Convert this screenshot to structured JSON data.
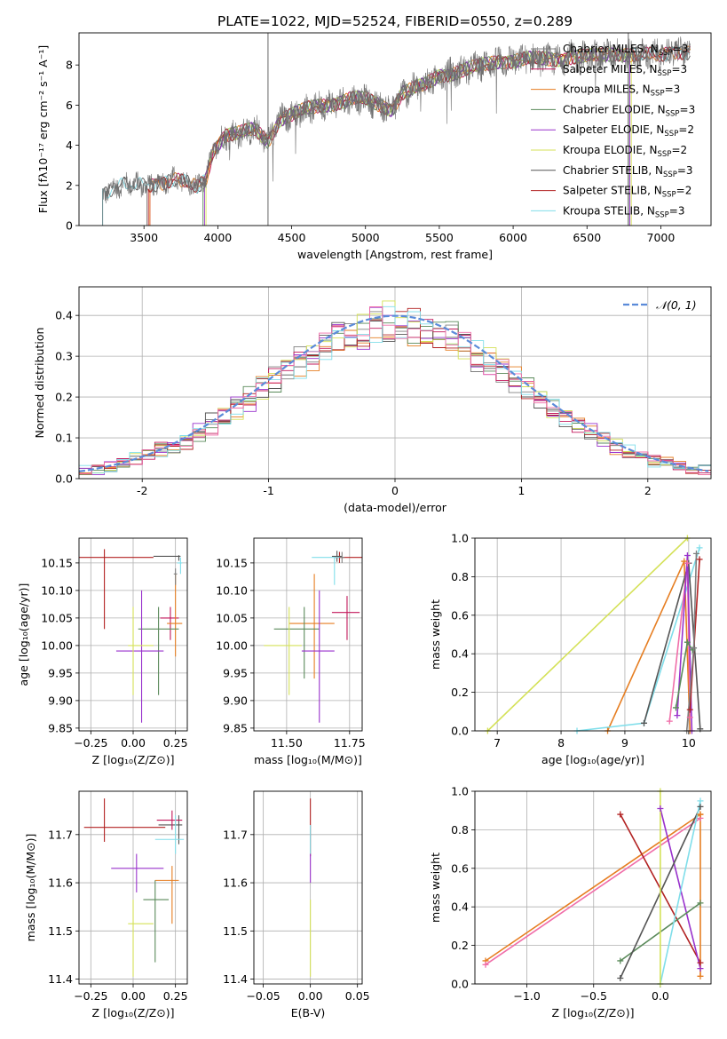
{
  "title": "PLATE=1022, MJD=52524, FIBERID=0550, z=0.289",
  "colors": {
    "Chabrier MILES": "#808080",
    "Salpeter MILES": "#c2185b",
    "Kroupa MILES": "#e67e22",
    "Chabrier ELODIE": "#5a8a5a",
    "Salpeter ELODIE": "#9932cc",
    "Kroupa ELODIE": "#d4e157",
    "Chabrier STELIB": "#555555",
    "Salpeter STELIB": "#b22222",
    "Kroupa STELIB": "#80deea",
    "pink": "#f06ea9",
    "gauss": "#5b8bd9"
  },
  "chart_data": [
    {
      "id": "spectrum",
      "type": "line",
      "xlabel": "wavelength [Angstrom, rest frame]",
      "ylabel": "Flux [fλ10⁻¹⁷ erg cm⁻² s⁻¹ A⁻¹]",
      "xlim": [
        3060,
        7340
      ],
      "ylim": [
        0,
        9.6
      ],
      "xticks": [
        3500,
        4000,
        4500,
        5000,
        5500,
        6000,
        6500,
        7000
      ],
      "yticks": [
        0,
        2,
        4,
        6,
        8
      ],
      "legend_position": "right",
      "legend": [
        {
          "name": "Chabrier MILES",
          "base": "Chabrier MILES, N",
          "sub": "SSP",
          "tail": "=3"
        },
        {
          "name": "Salpeter MILES",
          "base": "Salpeter MILES, N",
          "sub": "SSP",
          "tail": "=3"
        },
        {
          "name": "Kroupa MILES",
          "base": "Kroupa MILES, N",
          "sub": "SSP",
          "tail": "=3"
        },
        {
          "name": "Chabrier ELODIE",
          "base": "Chabrier ELODIE, N",
          "sub": "SSP",
          "tail": "=3"
        },
        {
          "name": "Salpeter ELODIE",
          "base": "Salpeter ELODIE, N",
          "sub": "SSP",
          "tail": "=2"
        },
        {
          "name": "Kroupa ELODIE",
          "base": "Kroupa ELODIE, N",
          "sub": "SSP",
          "tail": "=2"
        },
        {
          "name": "Chabrier STELIB",
          "base": "Chabrier STELIB, N",
          "sub": "SSP",
          "tail": "=3"
        },
        {
          "name": "Salpeter STELIB",
          "base": "Salpeter STELIB, N",
          "sub": "SSP",
          "tail": "=2"
        },
        {
          "name": "Kroupa STELIB",
          "base": "Kroupa STELIB, N",
          "sub": "SSP",
          "tail": "=3"
        }
      ],
      "continuum": [
        [
          3220,
          1.6
        ],
        [
          3300,
          1.9
        ],
        [
          3400,
          2.1
        ],
        [
          3500,
          2.0
        ],
        [
          3600,
          2.1
        ],
        [
          3700,
          2.3
        ],
        [
          3800,
          2.1
        ],
        [
          3860,
          1.9
        ],
        [
          3920,
          2.3
        ],
        [
          3970,
          3.8
        ],
        [
          4050,
          4.5
        ],
        [
          4150,
          4.6
        ],
        [
          4250,
          4.8
        ],
        [
          4340,
          4.2
        ],
        [
          4420,
          5.3
        ],
        [
          4500,
          5.5
        ],
        [
          4600,
          5.8
        ],
        [
          4700,
          6.0
        ],
        [
          4800,
          6.1
        ],
        [
          4900,
          6.3
        ],
        [
          5000,
          6.3
        ],
        [
          5100,
          6.0
        ],
        [
          5180,
          5.8
        ],
        [
          5250,
          6.6
        ],
        [
          5400,
          7.0
        ],
        [
          5500,
          7.5
        ],
        [
          5600,
          7.6
        ],
        [
          5700,
          7.8
        ],
        [
          5800,
          8.0
        ],
        [
          5900,
          8.2
        ],
        [
          6000,
          8.2
        ],
        [
          6100,
          8.3
        ],
        [
          6200,
          8.3
        ],
        [
          6300,
          8.3
        ],
        [
          6400,
          8.4
        ],
        [
          6500,
          8.4
        ],
        [
          6600,
          8.5
        ],
        [
          6700,
          8.6
        ],
        [
          6800,
          8.5
        ],
        [
          6900,
          8.5
        ],
        [
          7000,
          8.5
        ],
        [
          7100,
          8.7
        ],
        [
          7200,
          8.6
        ]
      ],
      "model_starts": {
        "Chabrier MILES": 3520,
        "Salpeter MILES": 3540,
        "Kroupa MILES": 3540,
        "Chabrier ELODIE": 3900,
        "Salpeter ELODIE": 3910,
        "Kroupa ELODIE": 3920,
        "Chabrier STELIB": 3220,
        "Salpeter STELIB": 3530,
        "Kroupa STELIB": 3220
      },
      "model_ends": {
        "Chabrier ELODIE": 6780,
        "Salpeter ELODIE": 6790,
        "Kroupa ELODIE": 6800
      }
    },
    {
      "id": "residuals",
      "type": "histogram",
      "xlabel": "(data-model)/error",
      "ylabel": "Normed distribution",
      "xlim": [
        -2.5,
        2.5
      ],
      "ylim": [
        0,
        0.47
      ],
      "xticks": [
        -2,
        -1,
        0,
        1,
        2
      ],
      "yticks": [
        0.0,
        0.1,
        0.2,
        0.3,
        0.4
      ],
      "legend": "𝒩(0, 1)",
      "gaussian": {
        "mean": 0,
        "sigma": 1
      }
    },
    {
      "id": "age-vs-Z",
      "type": "errorbar",
      "xlabel": "Z [log₁₀(Z/Z⊙)]",
      "ylabel": "age  [log₁₀(age/yr)]",
      "xlim": [
        -0.32,
        0.32
      ],
      "ylim": [
        9.845,
        10.195
      ],
      "xticks": [
        -0.25,
        0.0,
        0.25
      ],
      "yticks": [
        9.85,
        9.9,
        9.95,
        10.0,
        10.05,
        10.1,
        10.15
      ],
      "points": [
        {
          "series": "Salpeter STELIB",
          "x": -0.17,
          "xe": [
            0.17,
            0.29
          ],
          "y": 10.16,
          "ye": [
            0.13,
            0.015
          ]
        },
        {
          "series": "Chabrier STELIB",
          "x": 0.27,
          "xe": [
            0.15,
            0.01
          ],
          "y": 10.162,
          "ye": [
            0.008,
            0.002
          ]
        },
        {
          "series": "Kroupa STELIB",
          "x": 0.28,
          "xe": [
            0.02,
            0.01
          ],
          "y": 10.15,
          "ye": [
            0.02,
            0.01
          ]
        },
        {
          "series": "Salpeter MILES",
          "x": 0.22,
          "xe": [
            0.06,
            0.05
          ],
          "y": 10.05,
          "ye": [
            0.04,
            0.02
          ]
        },
        {
          "series": "Kroupa MILES",
          "x": 0.25,
          "xe": [
            0.05,
            0.04
          ],
          "y": 10.04,
          "ye": [
            0.06,
            0.09
          ]
        },
        {
          "series": "Chabrier ELODIE",
          "x": 0.15,
          "xe": [
            0.12,
            0.12
          ],
          "y": 10.03,
          "ye": [
            0.12,
            0.04
          ]
        },
        {
          "series": "Salpeter ELODIE",
          "x": 0.05,
          "xe": [
            0.15,
            0.13
          ],
          "y": 9.99,
          "ye": [
            0.13,
            0.11
          ]
        },
        {
          "series": "Kroupa ELODIE",
          "x": 0.0,
          "xe": [
            0.03,
            0.12
          ],
          "y": 10.0,
          "ye": [
            0.09,
            0.07
          ]
        },
        {
          "series": "Chabrier MILES",
          "x": 0.25,
          "xe": [
            0.01,
            0.01
          ],
          "y": 10.13,
          "ye": [
            0.02,
            0.01
          ]
        }
      ]
    },
    {
      "id": "age-vs-mass",
      "type": "errorbar",
      "xlabel": "mass [log₁₀(M/M⊙)]",
      "ylabel": "",
      "xlim": [
        11.37,
        11.8
      ],
      "ylim": [
        9.845,
        10.195
      ],
      "xticks": [
        11.5,
        11.6,
        11.7
      ],
      "xticklabels": [
        "11.50",
        "11.75"
      ],
      "xtickvals": [
        11.5,
        11.75
      ],
      "yticks": [
        9.85,
        9.9,
        9.95,
        10.0,
        10.05,
        10.1,
        10.15
      ],
      "points": [
        {
          "series": "Salpeter STELIB",
          "x": 11.71,
          "xe": [
            0.02,
            0.1
          ],
          "y": 10.16,
          "ye": [
            0.01,
            0.01
          ]
        },
        {
          "series": "Chabrier STELIB",
          "x": 11.7,
          "xe": [
            0.02,
            0.02
          ],
          "y": 10.162,
          "ye": [
            0.01,
            0.01
          ]
        },
        {
          "series": "Kroupa STELIB",
          "x": 11.69,
          "xe": [
            0.09,
            0.02
          ],
          "y": 10.16,
          "ye": [
            0.05,
            0.0
          ]
        },
        {
          "series": "Salpeter MILES",
          "x": 11.74,
          "xe": [
            0.06,
            0.05
          ],
          "y": 10.06,
          "ye": [
            0.05,
            0.03
          ]
        },
        {
          "series": "Kroupa MILES",
          "x": 11.61,
          "xe": [
            0.1,
            0.08
          ],
          "y": 10.04,
          "ye": [
            0.1,
            0.09
          ]
        },
        {
          "series": "Chabrier ELODIE",
          "x": 11.57,
          "xe": [
            0.12,
            0.06
          ],
          "y": 10.03,
          "ye": [
            0.09,
            0.04
          ]
        },
        {
          "series": "Salpeter ELODIE",
          "x": 11.63,
          "xe": [
            0.07,
            0.06
          ],
          "y": 9.99,
          "ye": [
            0.13,
            0.11
          ]
        },
        {
          "series": "Kroupa ELODIE",
          "x": 11.51,
          "xe": [
            0.1,
            0.05
          ],
          "y": 10.0,
          "ye": [
            0.09,
            0.07
          ]
        },
        {
          "series": "Chabrier MILES",
          "x": 11.72,
          "xe": [
            0.01,
            0.01
          ],
          "y": 10.16,
          "ye": [
            0.01,
            0.01
          ]
        }
      ]
    },
    {
      "id": "weight-vs-age",
      "type": "line",
      "xlabel": "age  [log₁₀(age/yr)]",
      "ylabel": "mass weight",
      "xlim": [
        6.65,
        10.35
      ],
      "ylim": [
        0,
        1.0
      ],
      "xticks": [
        7,
        8,
        9,
        10
      ],
      "yticks": [
        0.0,
        0.2,
        0.4,
        0.6,
        0.8,
        1.0
      ],
      "series": [
        {
          "name": "Kroupa ELODIE",
          "x": [
            6.85,
            9.98
          ],
          "y": [
            0.0,
            1.0
          ]
        },
        {
          "name": "Kroupa MILES",
          "x": [
            8.73,
            9.93,
            10.02
          ],
          "y": [
            0.0,
            0.88,
            0.0
          ]
        },
        {
          "name": "Kroupa STELIB",
          "x": [
            8.25,
            9.3,
            10.17
          ],
          "y": [
            0.0,
            0.04,
            0.95
          ]
        },
        {
          "name": "Chabrier STELIB",
          "x": [
            9.3,
            10.0,
            10.18
          ],
          "y": [
            0.04,
            0.87,
            0.01
          ]
        },
        {
          "name": "pink",
          "x": [
            9.7,
            9.98,
            10.02
          ],
          "y": [
            0.05,
            0.87,
            0.07
          ]
        },
        {
          "name": "Salpeter ELODIE",
          "x": [
            9.82,
            9.98,
            10.05
          ],
          "y": [
            0.08,
            0.91,
            0.0
          ]
        },
        {
          "name": "Chabrier ELODIE",
          "x": [
            9.8,
            9.98,
            10.06
          ],
          "y": [
            0.12,
            0.46,
            0.42
          ]
        },
        {
          "name": "Salpeter STELIB",
          "x": [
            10.02,
            10.17
          ],
          "y": [
            0.11,
            0.89
          ]
        },
        {
          "name": "Chabrier MILES",
          "x": [
            9.97,
            10.08,
            10.12
          ],
          "y": [
            0.0,
            0.43,
            0.92
          ]
        }
      ]
    },
    {
      "id": "mass-vs-Z",
      "type": "errorbar",
      "xlabel": "Z [log₁₀(Z/Z⊙)]",
      "ylabel": "mass [log₁₀(M/M⊙)]",
      "xlim": [
        -0.32,
        0.32
      ],
      "ylim": [
        11.39,
        11.79
      ],
      "xticks": [
        -0.25,
        0.0,
        0.25
      ],
      "yticks": [
        11.4,
        11.5,
        11.6,
        11.7
      ],
      "points": [
        {
          "series": "Salpeter STELIB",
          "x": -0.17,
          "xe": [
            0.12,
            0.36
          ],
          "y": 11.715,
          "ye": [
            0.03,
            0.06
          ]
        },
        {
          "series": "Chabrier STELIB",
          "x": 0.27,
          "xe": [
            0.12,
            0.02
          ],
          "y": 11.72,
          "ye": [
            0.04,
            0.02
          ]
        },
        {
          "series": "Salpeter MILES",
          "x": 0.23,
          "xe": [
            0.09,
            0.06
          ],
          "y": 11.73,
          "ye": [
            0.02,
            0.02
          ]
        },
        {
          "series": "Kroupa STELIB",
          "x": 0.25,
          "xe": [
            0.12,
            0.05
          ],
          "y": 11.69,
          "ye": [
            0.03,
            0.05
          ]
        },
        {
          "series": "Salpeter ELODIE",
          "x": 0.02,
          "xe": [
            0.15,
            0.16
          ],
          "y": 11.63,
          "ye": [
            0.05,
            0.03
          ]
        },
        {
          "series": "Kroupa MILES",
          "x": 0.23,
          "xe": [
            0.1,
            0.04
          ],
          "y": 11.605,
          "ye": [
            0.09,
            0.03
          ]
        },
        {
          "series": "Chabrier ELODIE",
          "x": 0.13,
          "xe": [
            0.07,
            0.08
          ],
          "y": 11.565,
          "ye": [
            0.13,
            0.04
          ]
        },
        {
          "series": "Kroupa ELODIE",
          "x": 0.0,
          "xe": [
            0.03,
            0.12
          ],
          "y": 11.515,
          "ye": [
            0.11,
            0.05
          ]
        }
      ]
    },
    {
      "id": "mass-vs-EBV",
      "type": "errorbar",
      "xlabel": "E(B-V)",
      "ylabel": "",
      "xlim": [
        -0.06,
        0.055
      ],
      "ylim": [
        11.39,
        11.79
      ],
      "xticks": [
        -0.05,
        0.0,
        0.05
      ],
      "xticklabels": [
        "−0.05",
        "0.00",
        "0.05"
      ],
      "yticks": [
        11.4,
        11.5,
        11.6,
        11.7
      ],
      "points": [
        {
          "series": "Salpeter STELIB",
          "x": 0.0,
          "xe": [
            0,
            0
          ],
          "y": 11.715,
          "ye": [
            0.06,
            0.06
          ]
        },
        {
          "series": "Kroupa STELIB",
          "x": 0.0,
          "xe": [
            0,
            0
          ],
          "y": 11.69,
          "ye": [
            0.03,
            0.03
          ]
        },
        {
          "series": "Salpeter ELODIE",
          "x": 0.0,
          "xe": [
            0,
            0
          ],
          "y": 11.63,
          "ye": [
            0.03,
            0.03
          ]
        },
        {
          "series": "Kroupa ELODIE",
          "x": 0.0,
          "xe": [
            0,
            0
          ],
          "y": 11.515,
          "ye": [
            0.11,
            0.05
          ]
        }
      ]
    },
    {
      "id": "weight-vs-Z",
      "type": "line",
      "xlabel": "Z [log₁₀(Z/Z⊙)]",
      "ylabel": "mass weight",
      "xlim": [
        -1.39,
        0.38
      ],
      "ylim": [
        0,
        1.0
      ],
      "xticks": [
        -1.0,
        -0.5,
        0.0
      ],
      "xticklabels": [
        "−1.0",
        "−0.5",
        "0.0"
      ],
      "yticks": [
        0.0,
        0.2,
        0.4,
        0.6,
        0.8,
        1.0
      ],
      "series": [
        {
          "name": "Kroupa MILES",
          "x": [
            -1.31,
            0.3
          ],
          "y": [
            0.12,
            0.88
          ]
        },
        {
          "name": "pink",
          "x": [
            -1.31,
            0.3
          ],
          "y": [
            0.1,
            0.86
          ]
        },
        {
          "name": "Salpeter STELIB",
          "x": [
            -0.3,
            0.3
          ],
          "y": [
            0.88,
            0.11
          ]
        },
        {
          "name": "Salpeter ELODIE",
          "x": [
            0.0,
            0.3
          ],
          "y": [
            0.91,
            0.08
          ]
        },
        {
          "name": "Chabrier ELODIE",
          "x": [
            -0.3,
            0.3
          ],
          "y": [
            0.12,
            0.42
          ]
        },
        {
          "name": "Chabrier STELIB",
          "x": [
            -0.3,
            0.3
          ],
          "y": [
            0.03,
            0.92
          ]
        },
        {
          "name": "Kroupa STELIB",
          "x": [
            0.0,
            0.3
          ],
          "y": [
            0.0,
            0.95
          ]
        },
        {
          "name": "Kroupa ELODIE",
          "x": [
            0.0,
            0.0
          ],
          "y": [
            0.0,
            1.0
          ]
        },
        {
          "name": "Kroupa MILES",
          "x": [
            0.3,
            0.3
          ],
          "y": [
            0.04,
            0.88
          ]
        }
      ]
    }
  ]
}
